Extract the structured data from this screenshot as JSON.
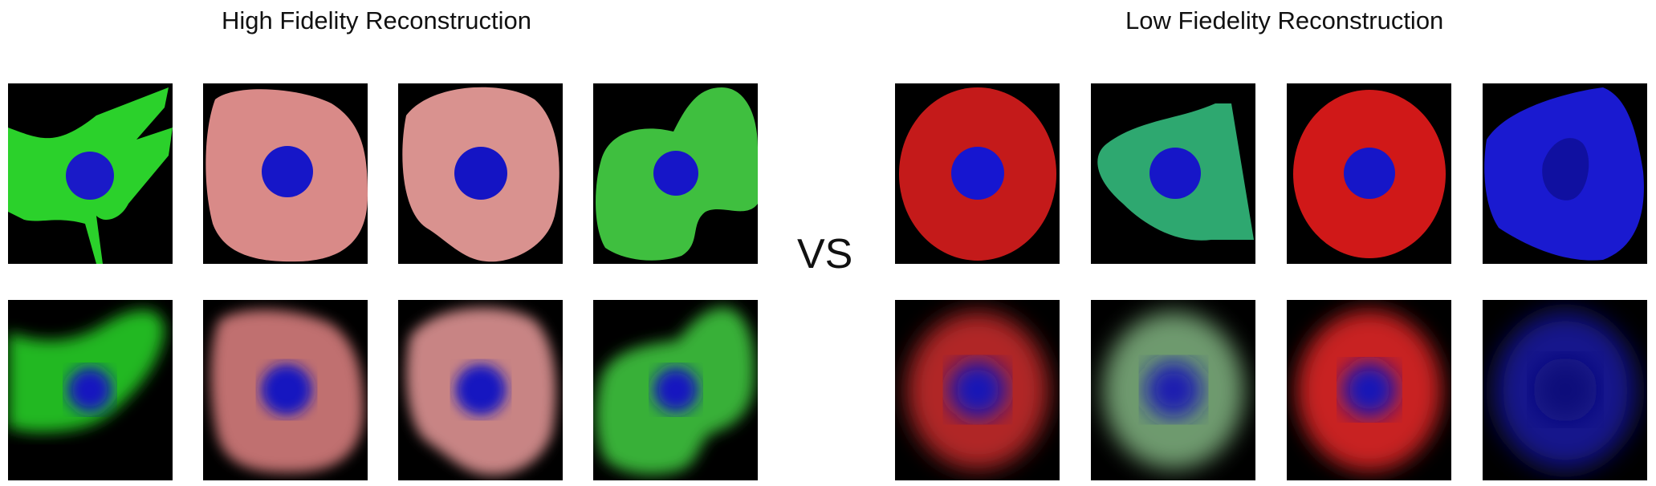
{
  "high_fidelity": {
    "title": "High Fidelity Reconstruction",
    "originals": [
      {
        "cell_color": "#2bd12b",
        "nucleus_color": "#1a1ac8",
        "shape": "triangular-with-protrusions"
      },
      {
        "cell_color": "#d98a88",
        "nucleus_color": "#1616c8",
        "shape": "rounded-square"
      },
      {
        "cell_color": "#d9928f",
        "nucleus_color": "#1414c4",
        "shape": "rounded-blob"
      },
      {
        "cell_color": "#3fbf3f",
        "nucleus_color": "#1616c8",
        "shape": "s-shaped-blob"
      }
    ],
    "reconstructions": [
      {
        "cell_color": "#22b822",
        "nucleus_color": "#1212c0",
        "shape": "blurred-triangular"
      },
      {
        "cell_color": "#c07070",
        "nucleus_color": "#1212c0",
        "shape": "blurred-rounded-square"
      },
      {
        "cell_color": "#c88484",
        "nucleus_color": "#1212c0",
        "shape": "blurred-rounded-blob"
      },
      {
        "cell_color": "#38b038",
        "nucleus_color": "#1212c0",
        "shape": "blurred-s-shape"
      }
    ]
  },
  "separator": {
    "label": "VS"
  },
  "low_fidelity": {
    "title": "Low Fiedelity Reconstruction",
    "originals": [
      {
        "cell_color": "#c41a1a",
        "nucleus_color": "#1616d0",
        "shape": "round"
      },
      {
        "cell_color": "#2ea870",
        "nucleus_color": "#1616c8",
        "shape": "trapezoid"
      },
      {
        "cell_color": "#d01818",
        "nucleus_color": "#1616c8",
        "shape": "round"
      },
      {
        "cell_color": "#1a1ad0",
        "nucleus_color": "#1010a0",
        "shape": "irregular-polygon"
      }
    ],
    "reconstructions": [
      {
        "cell_color": "#b02828",
        "nucleus_color": "#1212b8",
        "shape": "blurred-round"
      },
      {
        "cell_color": "#6e9a6e",
        "nucleus_color": "#1a1ab0",
        "shape": "blurred-round"
      },
      {
        "cell_color": "#c82020",
        "nucleus_color": "#1212b8",
        "shape": "blurred-round"
      },
      {
        "cell_color": "#16168c",
        "nucleus_color": "#10107a",
        "shape": "blurred-round"
      }
    ]
  }
}
